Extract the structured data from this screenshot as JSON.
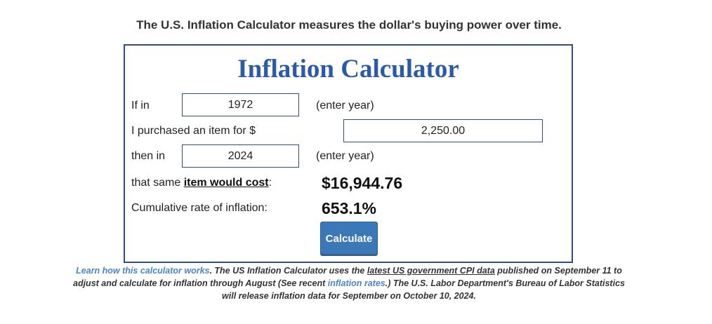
{
  "tagline": "The U.S. Inflation Calculator measures the dollar's buying power over time.",
  "calculator": {
    "title": "Inflation Calculator",
    "if_in_label": "If in",
    "start_year": "1972",
    "enter_year_hint_1": "(enter year)",
    "purchased_label": "I purchased an item for $",
    "amount": "2,250.00",
    "then_in_label": "then in",
    "end_year": "2024",
    "enter_year_hint_2": "(enter year)",
    "cost_label_prefix": "that same ",
    "cost_label_link": "item would cost",
    "cost_label_suffix": ":",
    "cost_value": "$16,944.76",
    "cumulative_label": "Cumulative rate of inflation:",
    "cumulative_value": "653.1%",
    "calculate_button": "Calculate"
  },
  "footer": {
    "learn_link": "Learn how this calculator works",
    "text_1": ". The US Inflation Calculator uses the ",
    "cpi_link": "latest US government CPI data",
    "text_2": " published on September 11 to adjust and calculate for inflation through August (See recent ",
    "rates_link": "inflation rates",
    "text_3": ".) The U.S. Labor Department's Bureau of Labor Statistics will release inflation data for September on October 10, 2024."
  },
  "colors": {
    "title_blue": "#2b5aa6",
    "border_blue": "#2c4f86",
    "button_blue": "#3a78b8",
    "link_blue": "#4a86c5"
  }
}
